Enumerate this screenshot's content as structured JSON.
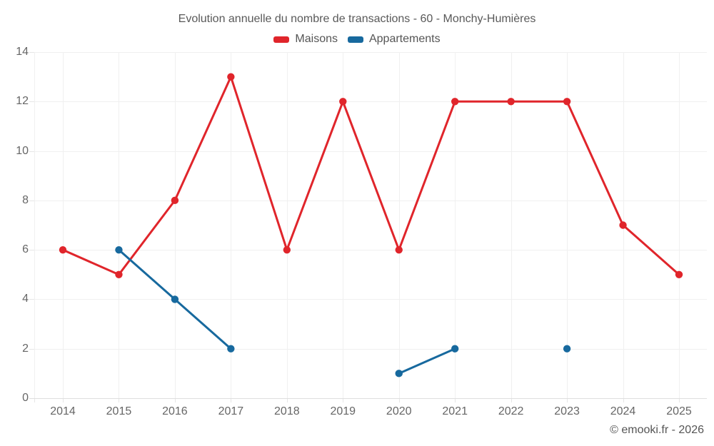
{
  "title": "Evolution annuelle du nombre de transactions - 60 - Monchy-Humières",
  "copyright": "© emooki.fr - 2026",
  "chart_data": {
    "type": "line",
    "title": "Evolution annuelle du nombre de transactions - 60 - Monchy-Humières",
    "categories": [
      "2014",
      "2015",
      "2016",
      "2017",
      "2018",
      "2019",
      "2020",
      "2021",
      "2022",
      "2023",
      "2024",
      "2025"
    ],
    "series": [
      {
        "name": "Maisons",
        "color": "#e0252b",
        "values": [
          6,
          5,
          8,
          13,
          6,
          12,
          6,
          12,
          12,
          12,
          7,
          5
        ]
      },
      {
        "name": "Appartements",
        "color": "#17699e",
        "values": [
          null,
          6,
          4,
          2,
          null,
          null,
          1,
          2,
          null,
          2,
          null,
          null
        ]
      }
    ],
    "xlabel": "",
    "ylabel": "",
    "ylim": [
      0,
      14
    ],
    "y_ticks": [
      0,
      2,
      4,
      6,
      8,
      10,
      12,
      14
    ],
    "grid": true,
    "legend_position": "top",
    "span_gaps": false,
    "colors": {
      "grid_line": "#f0f0f0",
      "axis_line": "#dedede",
      "tick_mark": "#e6e6e6",
      "tick_text": "#666666",
      "title_text": "#595959"
    }
  }
}
